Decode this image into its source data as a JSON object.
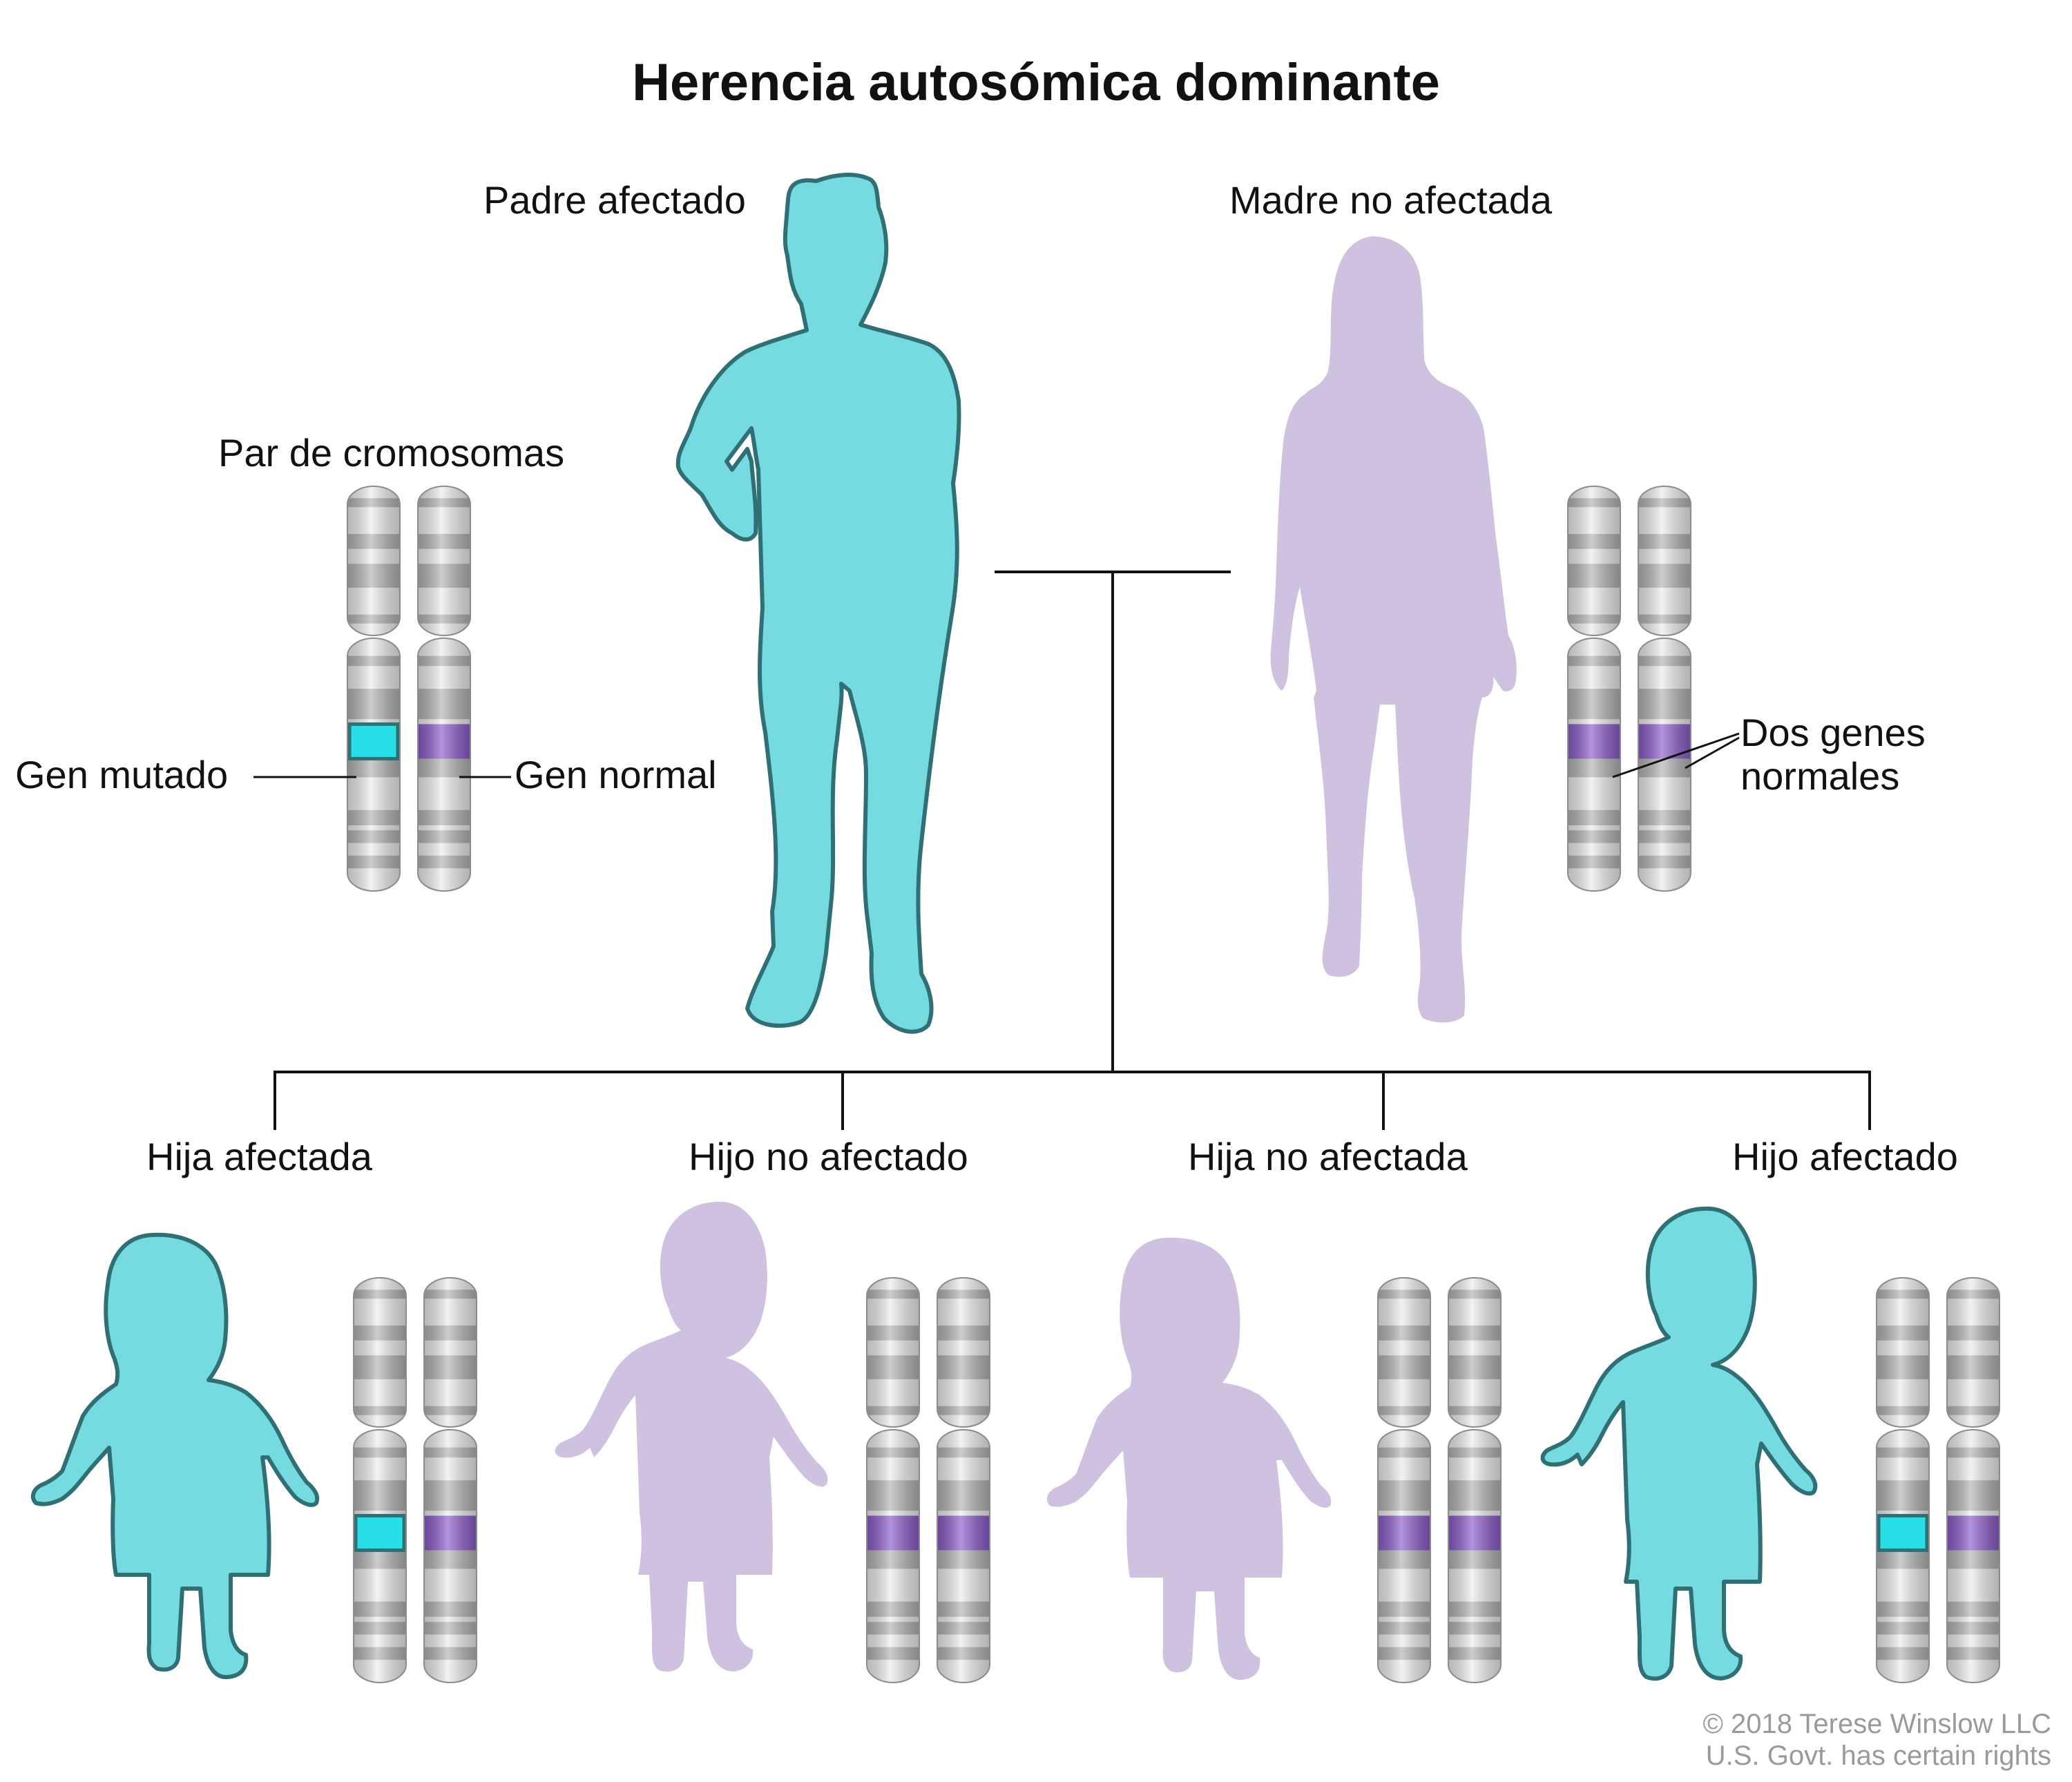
{
  "title": "Herencia autosómica dominante",
  "colors": {
    "affected": "#76dbe0",
    "affected_outline": "#2f7075",
    "unaffected": "#cfc2e0",
    "mutated_gene": "#27dfe6",
    "normal_gene": "#8a5ac8",
    "chromosome_light": "#ececec",
    "chromosome_band": "#b3b3b3",
    "line": "#111111"
  },
  "parents": {
    "father": {
      "label": "Padre afectado",
      "icon": "adult-man-silhouette-icon",
      "affected": true
    },
    "mother": {
      "label": "Madre no afectada",
      "icon": "adult-woman-silhouette-icon",
      "affected": false
    }
  },
  "chromosome_labels": {
    "pair": "Par de cromosomas",
    "mutated": "Gen mutado",
    "normal": "Gen normal",
    "two_normal_line1": "Dos genes",
    "two_normal_line2": "normales"
  },
  "children": [
    {
      "label": "Hija afectada",
      "icon": "girl-silhouette-icon",
      "affected": true
    },
    {
      "label": "Hijo no afectado",
      "icon": "boy-silhouette-icon",
      "affected": false
    },
    {
      "label": "Hija no afectada",
      "icon": "girl-silhouette-icon",
      "affected": false
    },
    {
      "label": "Hijo afectado",
      "icon": "boy-silhouette-icon",
      "affected": true
    }
  ],
  "credit": {
    "line1": "© 2018 Terese Winslow LLC",
    "line2": "U.S. Govt. has certain rights"
  }
}
